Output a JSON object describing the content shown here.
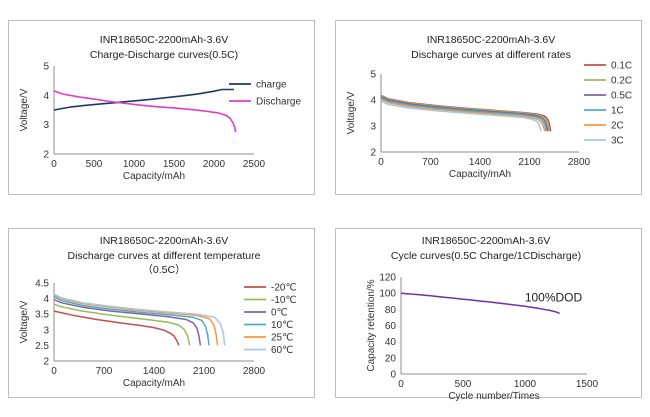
{
  "chart_data": [
    {
      "type": "line",
      "title": "INR18650C-2200mAh-3.6V",
      "subtitle": "Charge-Discharge curves(0.5C)",
      "xlabel": "Capacity/mAh",
      "ylabel": "Voltage/V",
      "xlim": [
        0,
        2500
      ],
      "ylim": [
        2,
        5
      ],
      "xticks": [
        0,
        500,
        1000,
        1500,
        2000,
        2500
      ],
      "yticks": [
        2,
        3,
        4,
        5
      ],
      "legend": "right",
      "series": [
        {
          "name": "charge",
          "color": "#1f3864",
          "x": [
            0,
            200,
            400,
            600,
            800,
            1000,
            1200,
            1400,
            1600,
            1800,
            2000,
            2100,
            2200,
            2250
          ],
          "y": [
            3.5,
            3.6,
            3.66,
            3.71,
            3.76,
            3.81,
            3.86,
            3.92,
            3.98,
            4.05,
            4.14,
            4.2,
            4.2,
            4.2
          ]
        },
        {
          "name": "Discharge",
          "color": "#e040c0",
          "x": [
            0,
            100,
            300,
            500,
            700,
            900,
            1100,
            1300,
            1500,
            1700,
            1900,
            2050,
            2150,
            2200,
            2240,
            2260,
            2270
          ],
          "y": [
            4.15,
            4.05,
            3.95,
            3.87,
            3.79,
            3.72,
            3.66,
            3.61,
            3.57,
            3.52,
            3.46,
            3.4,
            3.32,
            3.22,
            3.05,
            2.9,
            2.75
          ]
        }
      ]
    },
    {
      "type": "line",
      "title": "INR18650C-2200mAh-3.6V",
      "subtitle": "Discharge curves at different rates",
      "xlabel": "Capacity/mAh",
      "ylabel": "Voltage/V",
      "xlim": [
        0,
        2800
      ],
      "ylim": [
        2,
        5
      ],
      "xticks": [
        0,
        700,
        1400,
        2100,
        2800
      ],
      "yticks": [
        2,
        3,
        4,
        5
      ],
      "legend": "right",
      "series": [
        {
          "name": "0.1C",
          "color": "#c0504d",
          "x": [
            0,
            100,
            400,
            800,
            1200,
            1600,
            2000,
            2200,
            2300,
            2350,
            2380,
            2400
          ],
          "y": [
            4.18,
            4.05,
            3.9,
            3.78,
            3.68,
            3.6,
            3.52,
            3.46,
            3.4,
            3.3,
            3.1,
            2.8
          ]
        },
        {
          "name": "0.2C",
          "color": "#9bbb59",
          "x": [
            0,
            100,
            400,
            800,
            1200,
            1600,
            2000,
            2190,
            2280,
            2330,
            2360,
            2380
          ],
          "y": [
            4.16,
            4.03,
            3.88,
            3.76,
            3.66,
            3.58,
            3.5,
            3.44,
            3.37,
            3.27,
            3.07,
            2.8
          ]
        },
        {
          "name": "0.5C",
          "color": "#8064a2",
          "x": [
            0,
            100,
            400,
            800,
            1200,
            1600,
            2000,
            2180,
            2260,
            2310,
            2340,
            2360
          ],
          "y": [
            4.13,
            4.0,
            3.85,
            3.73,
            3.63,
            3.55,
            3.47,
            3.41,
            3.34,
            3.24,
            3.04,
            2.8
          ]
        },
        {
          "name": "1C",
          "color": "#4bacc6",
          "x": [
            0,
            100,
            400,
            800,
            1200,
            1600,
            2000,
            2160,
            2240,
            2290,
            2320,
            2340
          ],
          "y": [
            4.08,
            3.95,
            3.8,
            3.68,
            3.59,
            3.51,
            3.43,
            3.37,
            3.3,
            3.2,
            3.0,
            2.8
          ]
        },
        {
          "name": "2C",
          "color": "#f79646",
          "x": [
            0,
            100,
            400,
            800,
            1200,
            1600,
            2000,
            2140,
            2220,
            2270,
            2300,
            2320
          ],
          "y": [
            4.02,
            3.9,
            3.75,
            3.63,
            3.54,
            3.46,
            3.38,
            3.32,
            3.25,
            3.15,
            2.95,
            2.8
          ]
        },
        {
          "name": "3C",
          "color": "#a5c8e8",
          "x": [
            0,
            100,
            400,
            800,
            1200,
            1600,
            2000,
            2120,
            2190,
            2230,
            2250,
            2270
          ],
          "y": [
            3.95,
            3.83,
            3.69,
            3.58,
            3.49,
            3.41,
            3.33,
            3.27,
            3.2,
            3.1,
            2.92,
            2.8
          ]
        }
      ]
    },
    {
      "type": "line",
      "title": "INR18650C-2200mAh-3.6V",
      "subtitle": "Discharge curves at different temperature",
      "subtitle2": "（0.5C）",
      "xlabel": "Capacity/mAh",
      "ylabel": "Voltage/V",
      "xlim": [
        0,
        2800
      ],
      "ylim": [
        2,
        4.5
      ],
      "xticks": [
        0,
        700,
        1400,
        2100,
        2800
      ],
      "yticks": [
        2,
        2.5,
        3,
        3.5,
        4,
        4.5
      ],
      "legend": "right",
      "series": [
        {
          "name": "-20℃",
          "color": "#c0504d",
          "x": [
            0,
            100,
            300,
            600,
            900,
            1200,
            1400,
            1550,
            1620,
            1680,
            1720,
            1750
          ],
          "y": [
            3.6,
            3.55,
            3.45,
            3.33,
            3.23,
            3.14,
            3.07,
            2.98,
            2.9,
            2.8,
            2.65,
            2.5
          ]
        },
        {
          "name": "-10℃",
          "color": "#9bbb59",
          "x": [
            0,
            100,
            400,
            700,
            1000,
            1300,
            1600,
            1750,
            1820,
            1870,
            1900
          ],
          "y": [
            3.82,
            3.74,
            3.6,
            3.5,
            3.41,
            3.33,
            3.24,
            3.15,
            3.02,
            2.8,
            2.5
          ]
        },
        {
          "name": "0℃",
          "color": "#8064a2",
          "x": [
            0,
            100,
            400,
            800,
            1200,
            1600,
            1850,
            1950,
            2000,
            2030,
            2050
          ],
          "y": [
            3.97,
            3.87,
            3.72,
            3.6,
            3.51,
            3.42,
            3.33,
            3.22,
            3.05,
            2.8,
            2.5
          ]
        },
        {
          "name": "10℃",
          "color": "#4bacc6",
          "x": [
            0,
            100,
            400,
            800,
            1200,
            1600,
            1950,
            2070,
            2120,
            2150,
            2170
          ],
          "y": [
            4.06,
            3.94,
            3.78,
            3.66,
            3.56,
            3.48,
            3.4,
            3.3,
            3.12,
            2.85,
            2.5
          ]
        },
        {
          "name": "25℃",
          "color": "#f79646",
          "x": [
            0,
            100,
            400,
            800,
            1200,
            1600,
            2000,
            2180,
            2240,
            2270,
            2290
          ],
          "y": [
            4.12,
            4.0,
            3.84,
            3.72,
            3.62,
            3.54,
            3.46,
            3.35,
            3.15,
            2.85,
            2.5
          ]
        },
        {
          "name": "60℃",
          "color": "#a5c8e8",
          "x": [
            0,
            100,
            400,
            800,
            1200,
            1600,
            2000,
            2250,
            2330,
            2370,
            2390
          ],
          "y": [
            4.15,
            4.03,
            3.87,
            3.75,
            3.65,
            3.57,
            3.5,
            3.4,
            3.2,
            2.9,
            2.5
          ]
        }
      ]
    },
    {
      "type": "line",
      "title": "INR18650C-2200mAh-3.6V",
      "subtitle": "Cycle curves(0.5C Charge/1CDischarge)",
      "xlabel": "Cycle number/Times",
      "ylabel": "Capacity retention/%",
      "xlim": [
        0,
        1500
      ],
      "ylim": [
        0,
        120
      ],
      "xticks": [
        0,
        500,
        1000,
        1500
      ],
      "yticks": [
        0,
        20,
        40,
        60,
        80,
        100,
        120
      ],
      "annotation": "100%DOD",
      "series": [
        {
          "name": "",
          "color": "#7030a0",
          "x": [
            0,
            50,
            100,
            150,
            200,
            250,
            300,
            350,
            400,
            450,
            500,
            550,
            600,
            650,
            700,
            750,
            800,
            850,
            900,
            950,
            1000,
            1050,
            1100,
            1150,
            1200,
            1250,
            1280
          ],
          "y": [
            100,
            99.4,
            98.6,
            98.1,
            97.2,
            96.6,
            95.7,
            95.0,
            94.1,
            93.4,
            92.5,
            91.8,
            90.9,
            90.1,
            89.3,
            88.4,
            87.6,
            86.6,
            85.7,
            84.8,
            83.7,
            82.6,
            81.5,
            80.1,
            78.7,
            76.8,
            75.0
          ]
        }
      ]
    }
  ]
}
